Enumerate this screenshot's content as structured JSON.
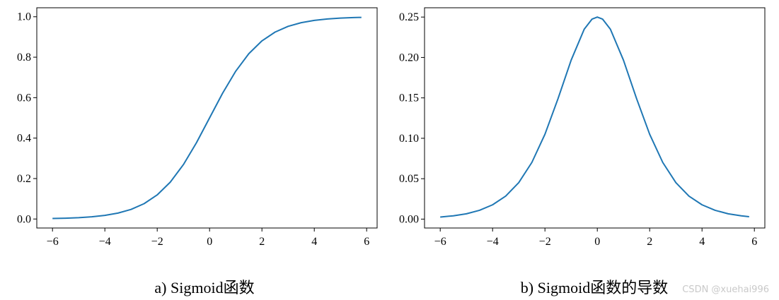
{
  "chart_data": [
    {
      "type": "line",
      "title": "",
      "xlabel": "",
      "ylabel": "",
      "xlim": [
        -6.6,
        6.4
      ],
      "ylim": [
        -0.0445,
        1.0445
      ],
      "x_ticks": [
        -6,
        -4,
        -2,
        0,
        2,
        4,
        6
      ],
      "y_ticks": [
        0.0,
        0.2,
        0.4,
        0.6,
        0.8,
        1.0
      ],
      "x_tick_labels": [
        "−6",
        "−4",
        "−2",
        "0",
        "2",
        "4",
        "6"
      ],
      "y_tick_labels": [
        "0.0",
        "0.2",
        "0.4",
        "0.6",
        "0.8",
        "1.0"
      ],
      "grid": false,
      "series": [
        {
          "color": "#1f77b4",
          "x": [
            -6.0,
            -5.5,
            -5.0,
            -4.5,
            -4.0,
            -3.5,
            -3.0,
            -2.5,
            -2.0,
            -1.5,
            -1.0,
            -0.5,
            0.0,
            0.5,
            1.0,
            1.5,
            2.0,
            2.5,
            3.0,
            3.5,
            4.0,
            4.5,
            5.0,
            5.5,
            5.8
          ],
          "y": [
            0.0025,
            0.0041,
            0.0067,
            0.011,
            0.018,
            0.0293,
            0.0474,
            0.0759,
            0.1192,
            0.1824,
            0.2689,
            0.3775,
            0.5,
            0.6225,
            0.7311,
            0.8176,
            0.8808,
            0.9241,
            0.9526,
            0.9707,
            0.982,
            0.989,
            0.9933,
            0.9959,
            0.997
          ]
        }
      ]
    },
    {
      "type": "line",
      "title": "",
      "xlabel": "",
      "ylabel": "",
      "xlim": [
        -6.6,
        6.4
      ],
      "ylim": [
        -0.011,
        0.2615
      ],
      "x_ticks": [
        -6,
        -4,
        -2,
        0,
        2,
        4,
        6
      ],
      "y_ticks": [
        0.0,
        0.05,
        0.1,
        0.15,
        0.2,
        0.25
      ],
      "x_tick_labels": [
        "−6",
        "−4",
        "−2",
        "0",
        "2",
        "4",
        "6"
      ],
      "y_tick_labels": [
        "0.00",
        "0.05",
        "0.10",
        "0.15",
        "0.20",
        "0.25"
      ],
      "grid": false,
      "series": [
        {
          "color": "#1f77b4",
          "x": [
            -6.0,
            -5.5,
            -5.0,
            -4.5,
            -4.0,
            -3.5,
            -3.0,
            -2.5,
            -2.0,
            -1.5,
            -1.0,
            -0.5,
            -0.2,
            0.0,
            0.2,
            0.5,
            1.0,
            1.5,
            2.0,
            2.5,
            3.0,
            3.5,
            4.0,
            4.5,
            5.0,
            5.5,
            5.8
          ],
          "y": [
            0.0025,
            0.0041,
            0.0066,
            0.0109,
            0.0177,
            0.0285,
            0.0452,
            0.0701,
            0.105,
            0.1491,
            0.1966,
            0.235,
            0.2475,
            0.25,
            0.2475,
            0.235,
            0.1966,
            0.1491,
            0.105,
            0.0701,
            0.0452,
            0.0285,
            0.0177,
            0.0109,
            0.0066,
            0.0041,
            0.003
          ]
        }
      ]
    }
  ],
  "captions": {
    "left": "a) Sigmoid函数",
    "right": "b) Sigmoid函数的导数"
  },
  "watermark": "CSDN @xuehai996"
}
